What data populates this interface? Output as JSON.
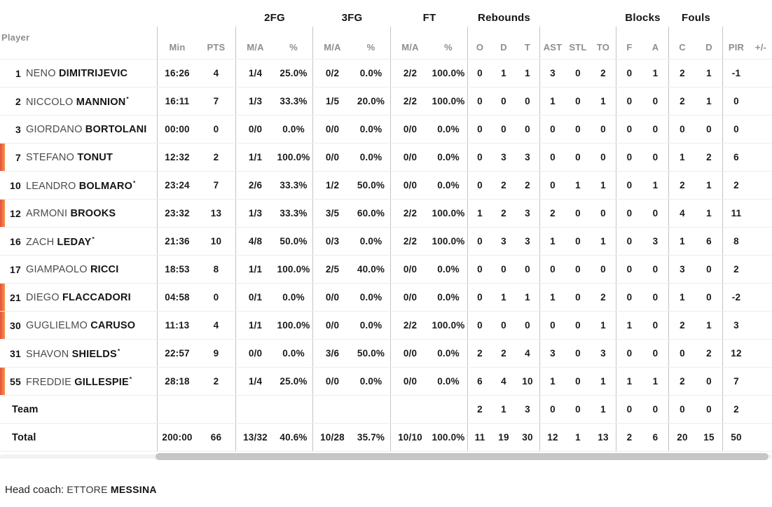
{
  "table": {
    "player_header": "Player",
    "groups": [
      {
        "label": "2FG"
      },
      {
        "label": "3FG"
      },
      {
        "label": "FT"
      },
      {
        "label": "Rebounds"
      },
      {
        "label": "Blocks"
      },
      {
        "label": "Fouls"
      }
    ],
    "columns": [
      "Min",
      "PTS",
      "M/A",
      "%",
      "M/A",
      "%",
      "M/A",
      "%",
      "O",
      "D",
      "T",
      "AST",
      "STL",
      "TO",
      "F",
      "A",
      "C",
      "D",
      "PIR",
      "+/-"
    ],
    "rows": [
      {
        "num": "1",
        "first": "NENO",
        "last": "DIMITRIJEVIC",
        "star": "",
        "on_court": false,
        "cells": [
          "16:26",
          "4",
          "1/4",
          "25.0%",
          "0/2",
          "0.0%",
          "2/2",
          "100.0%",
          "0",
          "1",
          "1",
          "3",
          "0",
          "2",
          "0",
          "1",
          "2",
          "1",
          "-1",
          ""
        ]
      },
      {
        "num": "2",
        "first": "NICCOLO",
        "last": "MANNION",
        "star": "*",
        "on_court": false,
        "cells": [
          "16:11",
          "7",
          "1/3",
          "33.3%",
          "1/5",
          "20.0%",
          "2/2",
          "100.0%",
          "0",
          "0",
          "0",
          "1",
          "0",
          "1",
          "0",
          "0",
          "2",
          "1",
          "0",
          ""
        ]
      },
      {
        "num": "3",
        "first": "GIORDANO",
        "last": "BORTOLANI",
        "star": "",
        "on_court": false,
        "cells": [
          "00:00",
          "0",
          "0/0",
          "0.0%",
          "0/0",
          "0.0%",
          "0/0",
          "0.0%",
          "0",
          "0",
          "0",
          "0",
          "0",
          "0",
          "0",
          "0",
          "0",
          "0",
          "0",
          ""
        ]
      },
      {
        "num": "7",
        "first": "STEFANO",
        "last": "TONUT",
        "star": "",
        "on_court": true,
        "cells": [
          "12:32",
          "2",
          "1/1",
          "100.0%",
          "0/0",
          "0.0%",
          "0/0",
          "0.0%",
          "0",
          "3",
          "3",
          "0",
          "0",
          "0",
          "0",
          "0",
          "1",
          "2",
          "6",
          ""
        ]
      },
      {
        "num": "10",
        "first": "LEANDRO",
        "last": "BOLMARO",
        "star": "*",
        "on_court": false,
        "cells": [
          "23:24",
          "7",
          "2/6",
          "33.3%",
          "1/2",
          "50.0%",
          "0/0",
          "0.0%",
          "0",
          "2",
          "2",
          "0",
          "1",
          "1",
          "0",
          "1",
          "2",
          "1",
          "2",
          ""
        ]
      },
      {
        "num": "12",
        "first": "ARMONI",
        "last": "BROOKS",
        "star": "",
        "on_court": true,
        "cells": [
          "23:32",
          "13",
          "1/3",
          "33.3%",
          "3/5",
          "60.0%",
          "2/2",
          "100.0%",
          "1",
          "2",
          "3",
          "2",
          "0",
          "0",
          "0",
          "0",
          "4",
          "1",
          "11",
          ""
        ]
      },
      {
        "num": "16",
        "first": "ZACH",
        "last": "LEDAY",
        "star": "*",
        "on_court": false,
        "cells": [
          "21:36",
          "10",
          "4/8",
          "50.0%",
          "0/3",
          "0.0%",
          "2/2",
          "100.0%",
          "0",
          "3",
          "3",
          "1",
          "0",
          "1",
          "0",
          "3",
          "1",
          "6",
          "8",
          ""
        ]
      },
      {
        "num": "17",
        "first": "GIAMPAOLO",
        "last": "RICCI",
        "star": "",
        "on_court": false,
        "cells": [
          "18:53",
          "8",
          "1/1",
          "100.0%",
          "2/5",
          "40.0%",
          "0/0",
          "0.0%",
          "0",
          "0",
          "0",
          "0",
          "0",
          "0",
          "0",
          "0",
          "3",
          "0",
          "2",
          ""
        ]
      },
      {
        "num": "21",
        "first": "DIEGO",
        "last": "FLACCADORI",
        "star": "",
        "on_court": true,
        "cells": [
          "04:58",
          "0",
          "0/1",
          "0.0%",
          "0/0",
          "0.0%",
          "0/0",
          "0.0%",
          "0",
          "1",
          "1",
          "1",
          "0",
          "2",
          "0",
          "0",
          "1",
          "0",
          "-2",
          ""
        ]
      },
      {
        "num": "30",
        "first": "GUGLIELMO",
        "last": "CARUSO",
        "star": "",
        "on_court": true,
        "cells": [
          "11:13",
          "4",
          "1/1",
          "100.0%",
          "0/0",
          "0.0%",
          "2/2",
          "100.0%",
          "0",
          "0",
          "0",
          "0",
          "0",
          "1",
          "1",
          "0",
          "2",
          "1",
          "3",
          ""
        ]
      },
      {
        "num": "31",
        "first": "SHAVON",
        "last": "SHIELDS",
        "star": "*",
        "on_court": false,
        "cells": [
          "22:57",
          "9",
          "0/0",
          "0.0%",
          "3/6",
          "50.0%",
          "0/0",
          "0.0%",
          "2",
          "2",
          "4",
          "3",
          "0",
          "3",
          "0",
          "0",
          "0",
          "2",
          "12",
          ""
        ]
      },
      {
        "num": "55",
        "first": "FREDDIE",
        "last": "GILLESPIE",
        "star": "*",
        "on_court": true,
        "cells": [
          "28:18",
          "2",
          "1/4",
          "25.0%",
          "0/0",
          "0.0%",
          "0/0",
          "0.0%",
          "6",
          "4",
          "10",
          "1",
          "0",
          "1",
          "1",
          "1",
          "2",
          "0",
          "7",
          ""
        ]
      },
      {
        "num": "",
        "first": "",
        "last": "Team",
        "star": "",
        "on_court": false,
        "cells": [
          "",
          "",
          "",
          "",
          "",
          "",
          "",
          "",
          "2",
          "1",
          "3",
          "0",
          "0",
          "1",
          "0",
          "0",
          "0",
          "0",
          "2",
          ""
        ]
      },
      {
        "num": "",
        "first": "",
        "last": "Total",
        "star": "",
        "on_court": false,
        "cells": [
          "200:00",
          "66",
          "13/32",
          "40.6%",
          "10/28",
          "35.7%",
          "10/10",
          "100.0%",
          "11",
          "19",
          "30",
          "12",
          "1",
          "13",
          "2",
          "6",
          "20",
          "15",
          "50",
          ""
        ]
      }
    ]
  },
  "footer": {
    "head_coach_label": "Head coach:",
    "coach_first": "ETTORE",
    "coach_last": "MESSINA"
  },
  "colors": {
    "on_court_marker_start": "#e25140",
    "on_court_marker_end": "#f79245",
    "divider": "#c4c4c4",
    "row_separator": "#ededed"
  }
}
